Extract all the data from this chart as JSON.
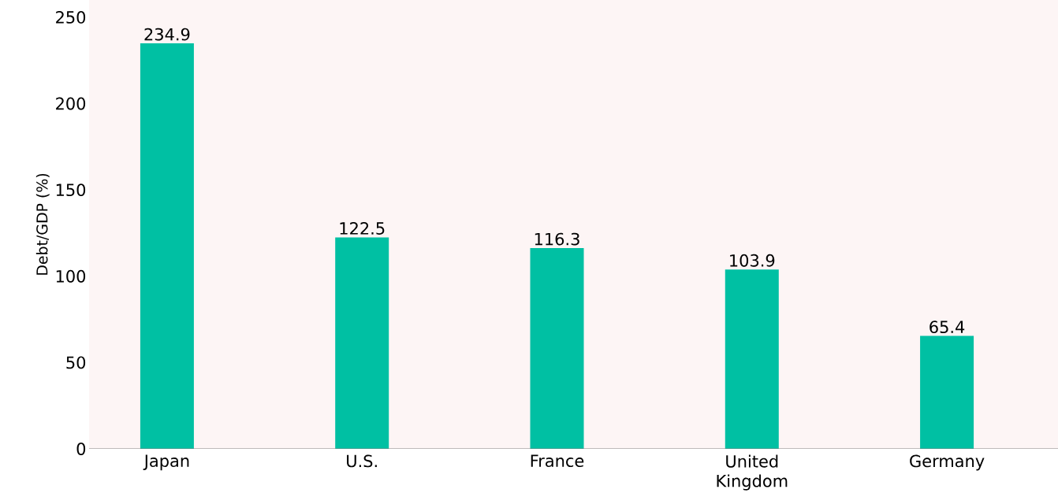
{
  "chart_data": {
    "type": "bar",
    "ylabel": "Debt/GDP (%)",
    "categories": [
      "Japan",
      "U.S.",
      "France",
      "United Kingdom",
      "Germany"
    ],
    "values": [
      234.9,
      122.5,
      116.3,
      103.9,
      65.4
    ],
    "color": "#00c0a3",
    "data_labels": true,
    "ylim": [
      0,
      260
    ],
    "yticks": [
      0,
      50,
      100,
      150,
      200,
      250
    ],
    "grid": false
  }
}
